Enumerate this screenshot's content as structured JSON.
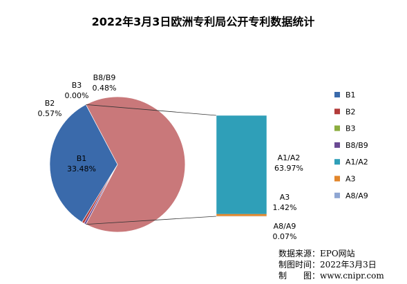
{
  "chart_data": {
    "type": "bar-of-pie",
    "title": "2022年3月3日欧洲专利局公开专利数据统计",
    "slices": [
      {
        "name": "B1",
        "value": 33.48,
        "label": "33.48%",
        "color": "#3a6aab",
        "group": "pie"
      },
      {
        "name": "B2",
        "value": 0.57,
        "label": "0.57%",
        "color": "#b33b3a",
        "group": "pie"
      },
      {
        "name": "B3",
        "value": 0.0,
        "label": "0.00%",
        "color": "#8cad3f",
        "group": "pie"
      },
      {
        "name": "B8/B9",
        "value": 0.48,
        "label": "0.48%",
        "color": "#6a4a93",
        "group": "pie"
      },
      {
        "name": "A1/A2",
        "value": 63.97,
        "label": "63.97%",
        "color": "#2f9fb8",
        "group": "bar"
      },
      {
        "name": "A3",
        "value": 1.42,
        "label": "1.42%",
        "color": "#e2862b",
        "group": "bar"
      },
      {
        "name": "A8/A9",
        "value": 0.07,
        "label": "0.07%",
        "color": "#8ea6d2",
        "group": "bar"
      }
    ],
    "other_color": "#c9787a",
    "legend_position": "right"
  },
  "source": {
    "line1": "数据来源：EPO网站",
    "line2": "制图时间：2022年3月3日",
    "line3": "制　　图：www.cnipr.com"
  }
}
